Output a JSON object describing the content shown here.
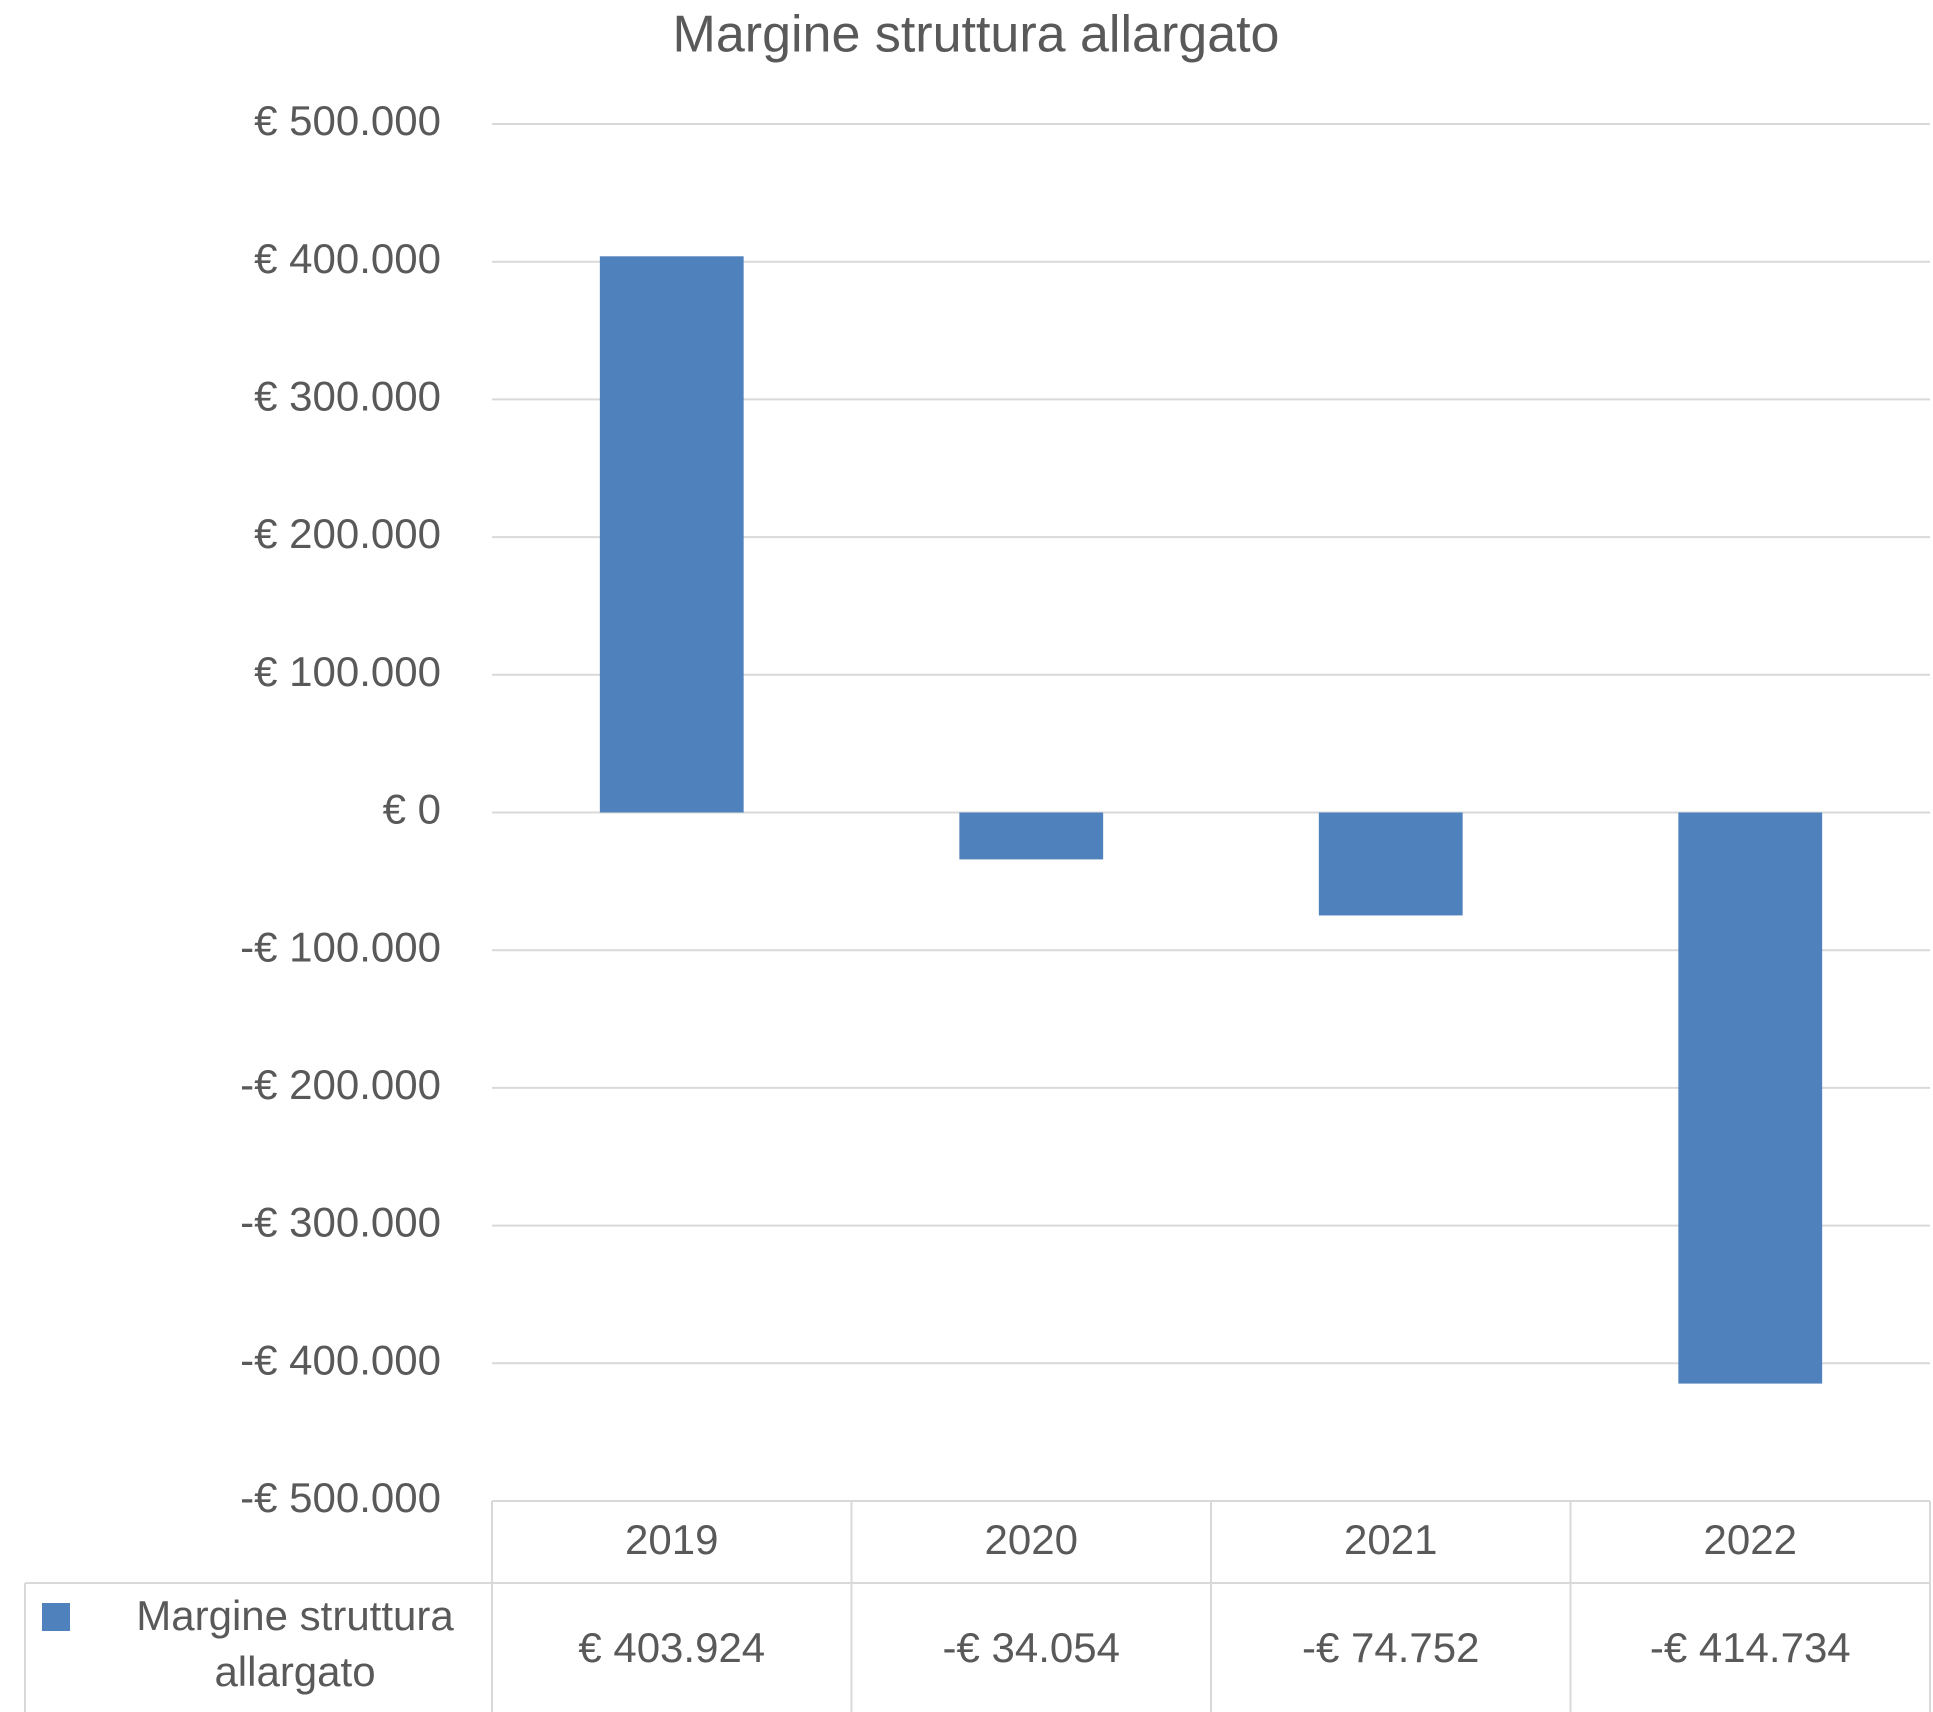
{
  "chart_data": {
    "type": "bar",
    "title": "Margine struttura allargato",
    "categories": [
      "2019",
      "2020",
      "2021",
      "2022"
    ],
    "series": [
      {
        "name": "Margine struttura allargato",
        "color": "#4f81bd",
        "values": [
          403924,
          -34054,
          -74752,
          -414734
        ],
        "value_labels": [
          "€ 403.924",
          "-€ 34.054",
          "-€ 74.752",
          "-€ 414.734"
        ]
      }
    ],
    "ylim": [
      -500000,
      500000
    ],
    "yticks": [
      {
        "value": -500000,
        "label": "-€ 500.000"
      },
      {
        "value": -400000,
        "label": "-€ 400.000"
      },
      {
        "value": -300000,
        "label": "-€ 300.000"
      },
      {
        "value": -200000,
        "label": "-€ 200.000"
      },
      {
        "value": -100000,
        "label": "-€ 100.000"
      },
      {
        "value": 0,
        "label": "€ 0"
      },
      {
        "value": 100000,
        "label": "€ 100.000"
      },
      {
        "value": 200000,
        "label": "€ 200.000"
      },
      {
        "value": 300000,
        "label": "€ 300.000"
      },
      {
        "value": 400000,
        "label": "€ 400.000"
      },
      {
        "value": 500000,
        "label": "€ 500.000"
      }
    ],
    "grid": true
  }
}
